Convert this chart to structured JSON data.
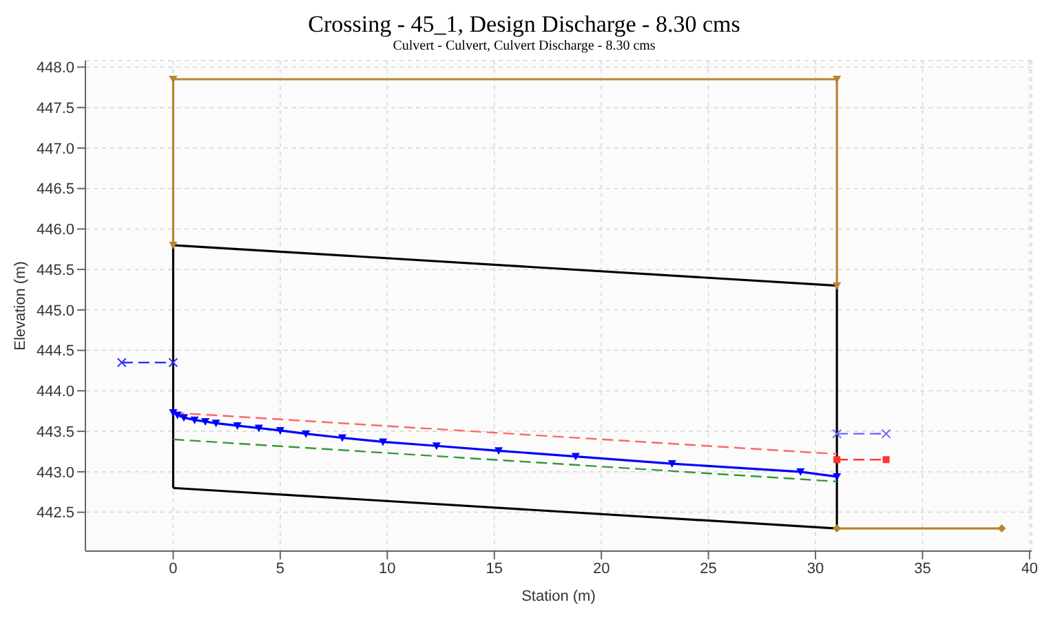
{
  "chart_data": {
    "type": "line",
    "title": "Crossing - 45_1, Design Discharge - 8.30 cms",
    "subtitle": "Culvert - Culvert, Culvert Discharge - 8.30 cms",
    "xlabel": "Station (m)",
    "ylabel": "Elevation (m)",
    "xlim": [
      -4.1,
      40.1
    ],
    "xticks": [
      0,
      5,
      10,
      15,
      20,
      25,
      30,
      35,
      40
    ],
    "ylim": [
      442.02,
      448.08
    ],
    "yticks": [
      {
        "value": 442.5,
        "label": "442.5"
      },
      {
        "value": 443,
        "label": "443.0"
      },
      {
        "value": 443.5,
        "label": "443.5"
      },
      {
        "value": 444,
        "label": "444.0"
      },
      {
        "value": 444.5,
        "label": "444.5"
      },
      {
        "value": 445,
        "label": "445.0"
      },
      {
        "value": 445.5,
        "label": "445.5"
      },
      {
        "value": 446,
        "label": "446.0"
      },
      {
        "value": 446.5,
        "label": "446.5"
      },
      {
        "value": 447,
        "label": "447.0"
      },
      {
        "value": 447.5,
        "label": "447.5"
      },
      {
        "value": 448,
        "label": "448.0"
      }
    ],
    "grid": true,
    "series": [
      {
        "color": "#b8862e",
        "x": [
          0,
          0,
          31,
          31
        ],
        "values": [
          445.8,
          447.85,
          447.85,
          445.3
        ],
        "marker": "triangle"
      },
      {
        "color": "#b8862e",
        "x": [
          31,
          38.7
        ],
        "values": [
          442.3,
          442.3
        ],
        "marker": "diamond"
      },
      {
        "color": "#000000",
        "x": [
          0,
          0,
          31
        ],
        "values": [
          442.8,
          445.8,
          445.3
        ],
        "marker": "none"
      },
      {
        "color": "#000000",
        "x": [
          0,
          31,
          31
        ],
        "values": [
          442.8,
          442.3,
          445.3
        ],
        "marker": "none"
      },
      {
        "color": "#ff6666",
        "x": [
          0,
          31
        ],
        "values": [
          443.73,
          443.22
        ],
        "line_style": "dashed",
        "marker": "none"
      },
      {
        "color": "#ff3333",
        "x": [
          31,
          33.3
        ],
        "values": [
          443.15,
          443.15
        ],
        "line_style": "dashed",
        "marker": "square"
      },
      {
        "color": "#339933",
        "x": [
          0,
          31
        ],
        "values": [
          443.4,
          442.88
        ],
        "line_style": "dashed",
        "marker": "none"
      },
      {
        "color": "#0000ff",
        "x": [
          0,
          0.2,
          0.5,
          1,
          1.5,
          2,
          3,
          4,
          5,
          6.2,
          7.9,
          9.8,
          12.3,
          15.2,
          18.8,
          23.3,
          29.3,
          31
        ],
        "values": [
          443.73,
          443.7,
          443.67,
          443.64,
          443.62,
          443.6,
          443.57,
          443.54,
          443.51,
          443.47,
          443.42,
          443.37,
          443.32,
          443.26,
          443.19,
          443.1,
          443,
          442.94
        ],
        "marker": "triangle"
      },
      {
        "color": "#3333ff",
        "x": [
          -2.4,
          0
        ],
        "values": [
          444.35,
          444.35
        ],
        "line_style": "dashed",
        "marker": "cross"
      },
      {
        "color": "#6666ff",
        "x": [
          31,
          33.3
        ],
        "values": [
          443.47,
          443.47
        ],
        "line_style": "dashed",
        "marker": "cross"
      }
    ]
  }
}
